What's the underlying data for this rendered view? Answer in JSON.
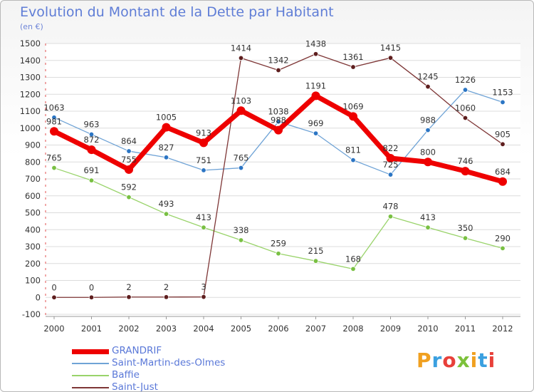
{
  "title": "Evolution du Montant de la Dette par Habitant",
  "unit_label": "(en €)",
  "logo_text": "Proxiti",
  "chart_data": {
    "type": "line",
    "x": [
      "2000",
      "2001",
      "2002",
      "2003",
      "2004",
      "2005",
      "2006",
      "2007",
      "2008",
      "2009",
      "2010",
      "2011",
      "2012"
    ],
    "ylim": [
      -100,
      1500
    ],
    "yticks": [
      -100,
      0,
      100,
      200,
      300,
      400,
      500,
      600,
      700,
      800,
      900,
      1000,
      1100,
      1200,
      1300,
      1400,
      1500
    ],
    "grid": "horizontal",
    "legend_position": "bottom-left",
    "series": [
      {
        "name": "Saint-Martin-des-Olmes",
        "color": "#6fa3d6",
        "marker": "#2b75c4",
        "width": 1.3,
        "values": [
          1063,
          963,
          864,
          827,
          751,
          765,
          1038,
          969,
          811,
          725,
          988,
          1226,
          1153
        ]
      },
      {
        "name": "Baffie",
        "color": "#99d36a",
        "marker": "#79c043",
        "width": 1.3,
        "values": [
          765,
          691,
          592,
          493,
          413,
          338,
          259,
          215,
          168,
          478,
          413,
          350,
          290
        ]
      },
      {
        "name": "Saint-Just",
        "color": "#7e3636",
        "marker": "#5e1e1e",
        "width": 1.3,
        "values": [
          0,
          0,
          2,
          2,
          3,
          1414,
          1342,
          1438,
          1361,
          1415,
          1245,
          1060,
          905
        ]
      },
      {
        "name": "GRANDRIF",
        "color": "#ee0000",
        "marker": "#ee0000",
        "width": 7,
        "values": [
          981,
          872,
          755,
          1005,
          913,
          1103,
          988,
          1191,
          1069,
          822,
          800,
          746,
          684
        ]
      }
    ],
    "legend_order": [
      "GRANDRIF",
      "Saint-Martin-des-Olmes",
      "Baffie",
      "Saint-Just"
    ]
  }
}
